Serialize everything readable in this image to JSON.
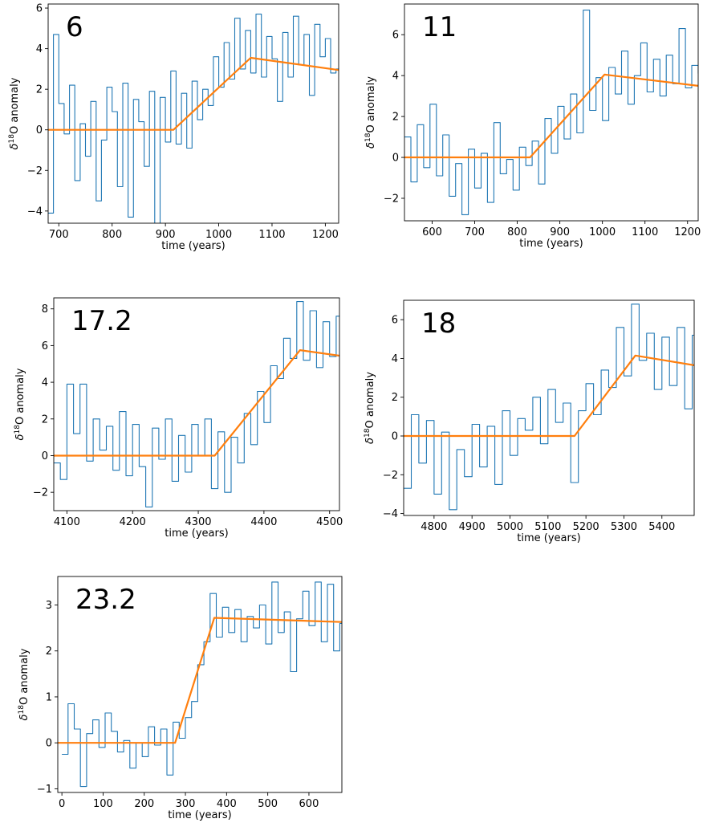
{
  "chart_data": [
    {
      "type": "line",
      "title": "6",
      "xlabel": "time (years)",
      "ylabel": "δ18O anomaly",
      "xlim": [
        680,
        1225
      ],
      "ylim": [
        -4.6,
        6.2
      ],
      "xticks": [
        700,
        800,
        900,
        1000,
        1100,
        1200
      ],
      "yticks": [
        -4,
        -2,
        0,
        2,
        4,
        6
      ],
      "grid": false,
      "series": [
        {
          "color": "#1f77b4",
          "x": [
            680,
            690,
            700,
            710,
            720,
            730,
            740,
            750,
            760,
            770,
            780,
            790,
            800,
            810,
            820,
            830,
            840,
            850,
            860,
            870,
            880,
            890,
            900,
            910,
            920,
            930,
            940,
            950,
            960,
            970,
            980,
            990,
            1000,
            1010,
            1020,
            1030,
            1040,
            1050,
            1060,
            1070,
            1080,
            1090,
            1100,
            1110,
            1120,
            1130,
            1140,
            1150,
            1160,
            1170,
            1180,
            1190,
            1200,
            1210,
            1220
          ],
          "y": [
            -4.1,
            4.7,
            1.3,
            -0.2,
            2.2,
            -2.5,
            0.3,
            -1.3,
            1.4,
            -3.5,
            -0.5,
            2.1,
            0.9,
            -2.8,
            2.3,
            -4.3,
            1.5,
            0.4,
            -1.8,
            1.9,
            -4.8,
            1.6,
            -0.6,
            2.9,
            -0.7,
            1.8,
            -0.9,
            2.4,
            0.5,
            2.0,
            1.2,
            3.6,
            2.1,
            4.3,
            2.5,
            5.5,
            3.0,
            4.9,
            2.8,
            5.7,
            2.6,
            4.6,
            3.5,
            1.4,
            4.8,
            2.6,
            5.6,
            3.2,
            4.7,
            1.7,
            5.2,
            3.6,
            4.5,
            2.8,
            3.0
          ]
        },
        {
          "color": "#ff7f0e",
          "x": [
            680,
            915,
            1060,
            1225
          ],
          "y": [
            0,
            0,
            3.55,
            2.95
          ]
        }
      ]
    },
    {
      "type": "line",
      "title": "11",
      "xlabel": "time (years)",
      "ylabel": "δ18O anomaly",
      "xlim": [
        535,
        1225
      ],
      "ylim": [
        -3.1,
        7.5
      ],
      "xticks": [
        600,
        700,
        800,
        900,
        1000,
        1100,
        1200
      ],
      "yticks": [
        -2,
        0,
        2,
        4,
        6
      ],
      "grid": false,
      "series": [
        {
          "color": "#1f77b4",
          "x": [
            535,
            550,
            565,
            580,
            595,
            610,
            625,
            640,
            655,
            670,
            685,
            700,
            715,
            730,
            745,
            760,
            775,
            790,
            805,
            820,
            835,
            850,
            865,
            880,
            895,
            910,
            925,
            940,
            955,
            970,
            985,
            1000,
            1015,
            1030,
            1045,
            1060,
            1075,
            1090,
            1105,
            1120,
            1135,
            1150,
            1165,
            1180,
            1195,
            1210,
            1225
          ],
          "y": [
            1.0,
            -1.2,
            1.6,
            -0.5,
            2.6,
            -0.9,
            1.1,
            -1.9,
            -0.3,
            -2.8,
            0.4,
            -1.5,
            0.2,
            -2.2,
            1.7,
            -0.8,
            -0.1,
            -1.6,
            0.5,
            -0.4,
            0.8,
            -1.3,
            1.9,
            0.2,
            2.5,
            0.9,
            3.1,
            1.2,
            7.2,
            2.3,
            3.9,
            1.8,
            4.4,
            3.1,
            5.2,
            2.6,
            4.0,
            5.6,
            3.2,
            4.8,
            3.0,
            5.0,
            3.6,
            6.3,
            3.4,
            4.5,
            4.1
          ]
        },
        {
          "color": "#ff7f0e",
          "x": [
            535,
            830,
            1005,
            1225
          ],
          "y": [
            0,
            0,
            4.05,
            3.5
          ]
        }
      ]
    },
    {
      "type": "line",
      "title": "17.2",
      "xlabel": "time (years)",
      "ylabel": "δ18O anomaly",
      "xlim": [
        4080,
        4515
      ],
      "ylim": [
        -3.0,
        8.6
      ],
      "xticks": [
        4100,
        4200,
        4300,
        4400,
        4500
      ],
      "yticks": [
        -2,
        0,
        2,
        4,
        6,
        8
      ],
      "grid": false,
      "series": [
        {
          "color": "#1f77b4",
          "x": [
            4080,
            4090,
            4100,
            4110,
            4120,
            4130,
            4140,
            4150,
            4160,
            4170,
            4180,
            4190,
            4200,
            4210,
            4220,
            4230,
            4240,
            4250,
            4260,
            4270,
            4280,
            4290,
            4300,
            4310,
            4320,
            4330,
            4340,
            4350,
            4360,
            4370,
            4380,
            4390,
            4400,
            4410,
            4420,
            4430,
            4440,
            4450,
            4460,
            4470,
            4480,
            4490,
            4500,
            4510
          ],
          "y": [
            -0.4,
            -1.3,
            3.9,
            1.2,
            3.9,
            -0.3,
            2.0,
            0.3,
            1.6,
            -0.8,
            2.4,
            -1.1,
            1.7,
            -0.6,
            -2.8,
            1.5,
            -0.2,
            2.0,
            -1.4,
            1.1,
            -0.9,
            1.7,
            0.0,
            2.0,
            -1.8,
            1.3,
            -2.0,
            1.0,
            -0.4,
            2.3,
            0.6,
            3.5,
            1.8,
            4.9,
            4.2,
            6.4,
            5.3,
            8.4,
            5.2,
            7.9,
            4.8,
            7.3,
            5.4,
            7.6
          ]
        },
        {
          "color": "#ff7f0e",
          "x": [
            4080,
            4325,
            4455,
            4515
          ],
          "y": [
            0,
            0,
            5.75,
            5.45
          ]
        }
      ]
    },
    {
      "type": "line",
      "title": "18",
      "xlabel": "time (years)",
      "ylabel": "δ18O anomaly",
      "xlim": [
        4720,
        5485
      ],
      "ylim": [
        -4.1,
        7.0
      ],
      "xticks": [
        4800,
        4900,
        5000,
        5100,
        5200,
        5300,
        5400
      ],
      "yticks": [
        -4,
        -2,
        0,
        2,
        4,
        6
      ],
      "grid": false,
      "series": [
        {
          "color": "#1f77b4",
          "x": [
            4720,
            4740,
            4760,
            4780,
            4800,
            4820,
            4840,
            4860,
            4880,
            4900,
            4920,
            4940,
            4960,
            4980,
            5000,
            5020,
            5040,
            5060,
            5080,
            5100,
            5120,
            5140,
            5160,
            5180,
            5200,
            5220,
            5240,
            5260,
            5280,
            5300,
            5320,
            5340,
            5360,
            5380,
            5400,
            5420,
            5440,
            5460,
            5480
          ],
          "y": [
            -2.7,
            1.1,
            -1.4,
            0.8,
            -3.0,
            0.2,
            -3.8,
            -0.7,
            -2.1,
            0.6,
            -1.6,
            0.5,
            -2.5,
            1.3,
            -1.0,
            0.9,
            0.3,
            2.0,
            -0.4,
            2.4,
            0.7,
            1.7,
            -2.4,
            1.3,
            2.7,
            1.1,
            3.4,
            2.5,
            5.6,
            3.1,
            6.8,
            3.9,
            5.3,
            2.4,
            5.1,
            2.6,
            5.6,
            1.4,
            5.2
          ]
        },
        {
          "color": "#ff7f0e",
          "x": [
            4720,
            5170,
            5330,
            5485
          ],
          "y": [
            0,
            0,
            4.15,
            3.65
          ]
        }
      ]
    },
    {
      "type": "line",
      "title": "23.2",
      "xlabel": "time (years)",
      "ylabel": "δ18O anomaly",
      "xlim": [
        -10,
        680
      ],
      "ylim": [
        -1.08,
        3.62
      ],
      "xticks": [
        0,
        100,
        200,
        300,
        400,
        500,
        600
      ],
      "yticks": [
        -1,
        0,
        1,
        2,
        3
      ],
      "grid": false,
      "series": [
        {
          "color": "#1f77b4",
          "x": [
            0,
            15,
            30,
            45,
            60,
            75,
            90,
            105,
            120,
            135,
            150,
            165,
            180,
            195,
            210,
            225,
            240,
            255,
            270,
            285,
            300,
            315,
            330,
            345,
            360,
            375,
            390,
            405,
            420,
            435,
            450,
            465,
            480,
            495,
            510,
            525,
            540,
            555,
            570,
            585,
            600,
            615,
            630,
            645,
            660,
            675
          ],
          "y": [
            -0.25,
            0.85,
            0.3,
            -0.95,
            0.2,
            0.5,
            -0.1,
            0.65,
            0.25,
            -0.2,
            0.05,
            -0.55,
            0.0,
            -0.3,
            0.35,
            -0.05,
            0.3,
            -0.7,
            0.45,
            0.1,
            0.55,
            0.9,
            1.7,
            2.2,
            3.25,
            2.3,
            2.95,
            2.4,
            2.9,
            2.2,
            2.75,
            2.5,
            3.0,
            2.15,
            3.5,
            2.4,
            2.85,
            1.55,
            2.7,
            3.3,
            2.55,
            3.5,
            2.2,
            3.45,
            2.0,
            2.6
          ]
        },
        {
          "color": "#ff7f0e",
          "x": [
            -10,
            275,
            370,
            680
          ],
          "y": [
            0,
            0,
            2.72,
            2.63
          ]
        }
      ]
    }
  ]
}
